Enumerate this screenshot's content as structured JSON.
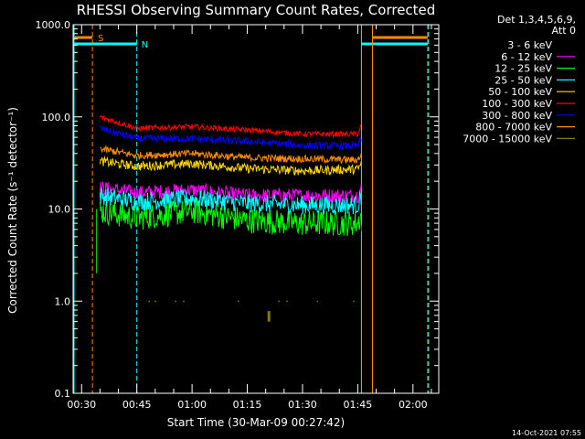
{
  "chart_data": {
    "type": "line",
    "title": "RHESSI Observing Summary Count Rates, Corrected",
    "xlabel": "Start Time (30-Mar-09 00:27:42)",
    "ylabel": "Corrected Count Rate (s⁻¹ detector⁻¹)",
    "y_scale": "log",
    "ylim": [
      0.1,
      1000.0
    ],
    "xlim": [
      "00:27:42",
      "02:07:00"
    ],
    "y_ticks": [
      "0.1",
      "1.0",
      "10.0",
      "100.0",
      "1000.0"
    ],
    "x_ticks": [
      "00:30",
      "00:45",
      "01:00",
      "01:15",
      "01:30",
      "01:45",
      "02:00"
    ],
    "legend_header": [
      "Det 1,3,4,5,6,9,",
      "Att 0"
    ],
    "legend_position": "top-right outside",
    "footer": "14-Oct-2021 07:55",
    "colors": {
      "background": "#000000",
      "foreground": "#ffffff",
      "cyan": "#00ffff",
      "orange": "#ff8c00"
    },
    "series": [
      {
        "name": "3 - 6 keV",
        "color": "#000000",
        "x": [
          "00:35",
          "00:45",
          "01:00",
          "01:15",
          "01:30",
          "01:45",
          "01:46"
        ],
        "values": [
          9.0,
          7.5,
          8.0,
          6.5,
          6.5,
          6.5,
          8.0
        ]
      },
      {
        "name": "6 - 12 keV",
        "color": "#ff00ff",
        "x": [
          "00:35",
          "00:45",
          "01:00",
          "01:15",
          "01:30",
          "01:45",
          "01:46"
        ],
        "values": [
          17,
          15,
          16,
          14,
          14,
          14,
          17
        ]
      },
      {
        "name": "12 - 25 keV",
        "color": "#00ff00",
        "x": [
          "00:35",
          "00:45",
          "01:00",
          "01:15",
          "01:30",
          "01:45",
          "01:46"
        ],
        "values": [
          9.5,
          8.0,
          9.5,
          7.5,
          7.0,
          7.0,
          9.0
        ]
      },
      {
        "name": "25 - 50 keV",
        "color": "#00ffff",
        "x": [
          "00:35",
          "00:45",
          "01:00",
          "01:15",
          "01:30",
          "01:45",
          "01:46"
        ],
        "values": [
          14,
          12,
          13,
          11.5,
          11,
          11,
          14
        ]
      },
      {
        "name": "50 - 100 keV",
        "color": "#ffd700",
        "x": [
          "00:35",
          "00:45",
          "01:00",
          "01:15",
          "01:30",
          "01:45",
          "01:46"
        ],
        "values": [
          33,
          29,
          31,
          27.5,
          26,
          27,
          31
        ]
      },
      {
        "name": "100 - 300 keV",
        "color": "#ff0000",
        "x": [
          "00:35",
          "00:45",
          "01:00",
          "01:15",
          "01:30",
          "01:45",
          "01:46"
        ],
        "values": [
          100,
          75,
          78,
          72,
          65,
          65,
          82
        ]
      },
      {
        "name": "300 - 800 keV",
        "color": "#0000ff",
        "x": [
          "00:35",
          "00:45",
          "01:00",
          "01:15",
          "01:30",
          "01:45",
          "01:46"
        ],
        "values": [
          75,
          58,
          58,
          54,
          49,
          48,
          58
        ]
      },
      {
        "name": "800 - 7000 keV",
        "color": "#ff8c00",
        "x": [
          "00:35",
          "00:45",
          "01:00",
          "01:15",
          "01:30",
          "01:45",
          "01:46"
        ],
        "values": [
          45,
          38,
          40,
          36,
          35,
          34,
          40
        ]
      },
      {
        "name": "7000 - 15000 keV",
        "color": "#808000",
        "x": [
          "00:35",
          "01:00",
          "01:10",
          "01:20",
          "01:45"
        ],
        "values": [
          1.0,
          1.0,
          1.0,
          0.65,
          1.0
        ]
      }
    ],
    "flags": [
      {
        "label": "S",
        "color": "#ff8c00"
      },
      {
        "label": "N",
        "color": "#00ffff"
      }
    ]
  }
}
